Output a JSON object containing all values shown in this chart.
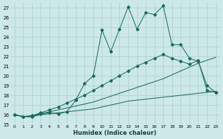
{
  "xlabel": "Humidex (Indice chaleur)",
  "xlim": [
    -0.5,
    23.5
  ],
  "ylim": [
    15,
    27.5
  ],
  "yticks": [
    15,
    16,
    17,
    18,
    19,
    20,
    21,
    22,
    23,
    24,
    25,
    26,
    27
  ],
  "xticks": [
    0,
    1,
    2,
    3,
    4,
    5,
    6,
    7,
    8,
    9,
    10,
    11,
    12,
    13,
    14,
    15,
    16,
    17,
    18,
    19,
    20,
    21,
    22,
    23
  ],
  "bg_color": "#cce8e8",
  "line_color": "#1a6b5e",
  "grid_color": "#aacece",
  "line1_y": [
    16.0,
    15.8,
    15.8,
    16.1,
    16.2,
    16.1,
    16.3,
    17.5,
    19.2,
    20.0,
    24.7,
    22.5,
    24.8,
    27.1,
    24.8,
    26.5,
    26.3,
    27.2,
    23.2,
    23.2,
    21.8,
    21.5,
    19.0,
    18.3
  ],
  "line2_y": [
    16.0,
    15.8,
    15.9,
    16.2,
    16.5,
    16.8,
    17.2,
    17.6,
    18.0,
    18.5,
    19.0,
    19.5,
    20.0,
    20.5,
    21.0,
    21.4,
    21.8,
    22.2,
    21.8,
    21.5,
    21.2,
    21.6,
    18.5,
    18.3
  ],
  "line3_y": [
    16.0,
    15.8,
    15.9,
    16.1,
    16.3,
    16.5,
    16.7,
    16.9,
    17.1,
    17.3,
    17.6,
    17.9,
    18.2,
    18.5,
    18.8,
    19.1,
    19.4,
    19.7,
    20.1,
    20.5,
    20.9,
    21.3,
    21.6,
    21.9
  ],
  "line4_y": [
    16.0,
    15.8,
    15.8,
    16.0,
    16.1,
    16.2,
    16.3,
    16.4,
    16.5,
    16.6,
    16.8,
    17.0,
    17.2,
    17.4,
    17.5,
    17.6,
    17.7,
    17.8,
    17.9,
    18.0,
    18.1,
    18.2,
    18.3,
    18.4
  ],
  "marker": "D",
  "markersize": 2.0,
  "linewidth": 0.75
}
